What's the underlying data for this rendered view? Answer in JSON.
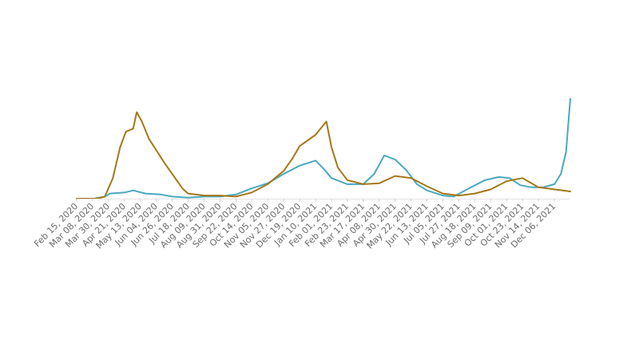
{
  "chart_data": {
    "type": "line",
    "title": "",
    "xlabel": "",
    "ylabel": "",
    "grid": false,
    "legend": "none",
    "x_ticks": [
      "Feb 15, 2020",
      "Mar 08, 2020",
      "Mar 30, 2020",
      "Apr 21, 2020",
      "May 13, 2020",
      "Jun 04, 2020",
      "Jun 26, 2020",
      "Jul 18, 2020",
      "Aug 09, 2020",
      "Aug 31, 2020",
      "Sep 22, 2020",
      "Oct 14, 2020",
      "Nov 05, 2020",
      "Nov 27, 2020",
      "Dec 19, 2020",
      "Jan 10, 2021",
      "Feb 01, 2021",
      "Feb 23, 2021",
      "Mar 17, 2021",
      "Apr 08, 2021",
      "Apr 30, 2021",
      "May 22, 2021",
      "Jun 13, 2021",
      "Jul 05, 2021",
      "Jul 27, 2021",
      "Aug 18, 2021",
      "Sep 09, 2021",
      "Oct 01, 2021",
      "Oct 23, 2021",
      "Nov 14, 2021",
      "Dec 06, 2021"
    ],
    "x_range": [
      "2020-02-15",
      "2021-12-28"
    ],
    "ylim": [
      0,
      100
    ],
    "series": [
      {
        "color": "#4aa8c0",
        "points": [
          [
            "2020-02-15",
            0
          ],
          [
            "2020-03-10",
            0
          ],
          [
            "2020-03-25",
            2
          ],
          [
            "2020-04-01",
            5
          ],
          [
            "2020-04-21",
            6
          ],
          [
            "2020-05-03",
            8
          ],
          [
            "2020-05-20",
            5
          ],
          [
            "2020-06-10",
            4
          ],
          [
            "2020-06-26",
            2
          ],
          [
            "2020-07-18",
            1
          ],
          [
            "2020-08-09",
            2
          ],
          [
            "2020-08-31",
            2
          ],
          [
            "2020-09-22",
            4
          ],
          [
            "2020-10-14",
            10
          ],
          [
            "2020-11-05",
            15
          ],
          [
            "2020-11-27",
            24
          ],
          [
            "2020-12-19",
            32
          ],
          [
            "2021-01-10",
            37
          ],
          [
            "2021-01-20",
            30
          ],
          [
            "2021-02-01",
            20
          ],
          [
            "2021-02-23",
            14
          ],
          [
            "2021-03-17",
            14
          ],
          [
            "2021-04-01",
            24
          ],
          [
            "2021-04-15",
            42
          ],
          [
            "2021-04-30",
            38
          ],
          [
            "2021-05-15",
            28
          ],
          [
            "2021-05-30",
            14
          ],
          [
            "2021-06-13",
            8
          ],
          [
            "2021-07-05",
            3
          ],
          [
            "2021-07-20",
            2
          ],
          [
            "2021-08-10",
            10
          ],
          [
            "2021-09-01",
            18
          ],
          [
            "2021-09-20",
            21
          ],
          [
            "2021-10-05",
            20
          ],
          [
            "2021-10-20",
            13
          ],
          [
            "2021-11-05",
            11
          ],
          [
            "2021-11-20",
            11
          ],
          [
            "2021-12-06",
            14
          ],
          [
            "2021-12-15",
            24
          ],
          [
            "2021-12-22",
            45
          ],
          [
            "2021-12-28",
            97
          ]
        ]
      },
      {
        "color": "#a57719",
        "points": [
          [
            "2020-02-15",
            0
          ],
          [
            "2020-03-15",
            0
          ],
          [
            "2020-03-25",
            2
          ],
          [
            "2020-04-05",
            20
          ],
          [
            "2020-04-15",
            50
          ],
          [
            "2020-04-23",
            65
          ],
          [
            "2020-05-03",
            68
          ],
          [
            "2020-05-08",
            84
          ],
          [
            "2020-05-15",
            75
          ],
          [
            "2020-05-25",
            58
          ],
          [
            "2020-06-15",
            35
          ],
          [
            "2020-07-10",
            10
          ],
          [
            "2020-07-18",
            5
          ],
          [
            "2020-08-09",
            3
          ],
          [
            "2020-08-31",
            3
          ],
          [
            "2020-09-22",
            2
          ],
          [
            "2020-10-14",
            6
          ],
          [
            "2020-11-05",
            14
          ],
          [
            "2020-11-27",
            27
          ],
          [
            "2020-12-10",
            40
          ],
          [
            "2020-12-19",
            51
          ],
          [
            "2021-01-10",
            62
          ],
          [
            "2021-01-25",
            75
          ],
          [
            "2021-02-01",
            50
          ],
          [
            "2021-02-10",
            30
          ],
          [
            "2021-02-23",
            18
          ],
          [
            "2021-03-17",
            14
          ],
          [
            "2021-04-08",
            15
          ],
          [
            "2021-04-30",
            22
          ],
          [
            "2021-05-22",
            20
          ],
          [
            "2021-06-13",
            12
          ],
          [
            "2021-07-05",
            5
          ],
          [
            "2021-07-27",
            3
          ],
          [
            "2021-08-18",
            5
          ],
          [
            "2021-09-09",
            9
          ],
          [
            "2021-10-01",
            17
          ],
          [
            "2021-10-23",
            20
          ],
          [
            "2021-11-14",
            11
          ],
          [
            "2021-12-06",
            9
          ],
          [
            "2021-12-28",
            7
          ]
        ]
      }
    ]
  }
}
